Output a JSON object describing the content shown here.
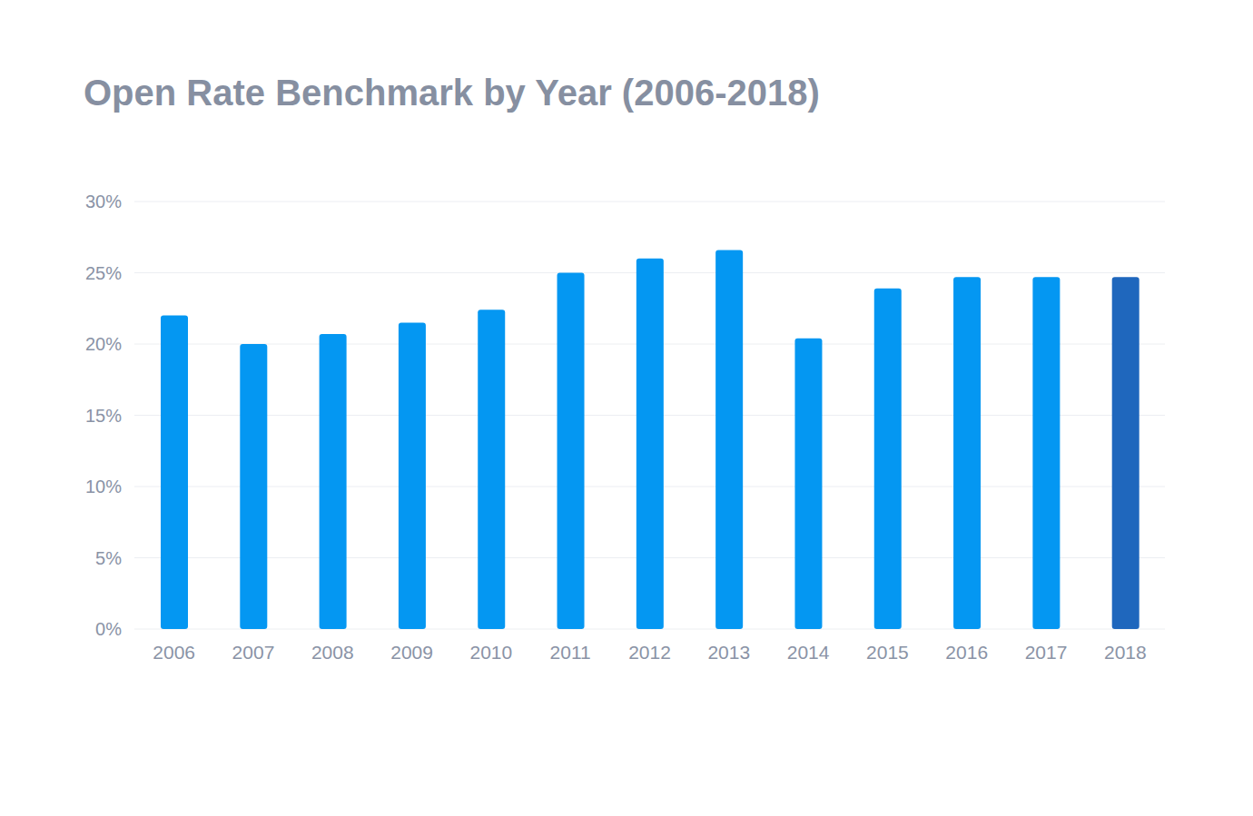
{
  "chart_data": {
    "type": "bar",
    "title": "Open Rate Benchmark by Year (2006-2018)",
    "categories": [
      "2006",
      "2007",
      "2008",
      "2009",
      "2010",
      "2011",
      "2012",
      "2013",
      "2014",
      "2015",
      "2016",
      "2017",
      "2018"
    ],
    "values": [
      22,
      20,
      20.7,
      21.5,
      22.4,
      25,
      26,
      26.6,
      20.4,
      23.9,
      24.7,
      24.7,
      24.7
    ],
    "colors": [
      "#0497f2",
      "#0497f2",
      "#0497f2",
      "#0497f2",
      "#0497f2",
      "#0497f2",
      "#0497f2",
      "#0497f2",
      "#0497f2",
      "#0497f2",
      "#0497f2",
      "#0497f2",
      "#1f67bd"
    ],
    "ylim": [
      0,
      30
    ],
    "yticks": [
      {
        "value": 0,
        "label": "0%"
      },
      {
        "value": 5,
        "label": "5%"
      },
      {
        "value": 10,
        "label": "10%"
      },
      {
        "value": 15,
        "label": "15%"
      },
      {
        "value": 20,
        "label": "20%"
      },
      {
        "value": 25,
        "label": "25%"
      },
      {
        "value": 30,
        "label": "30%"
      }
    ],
    "grid": true
  }
}
